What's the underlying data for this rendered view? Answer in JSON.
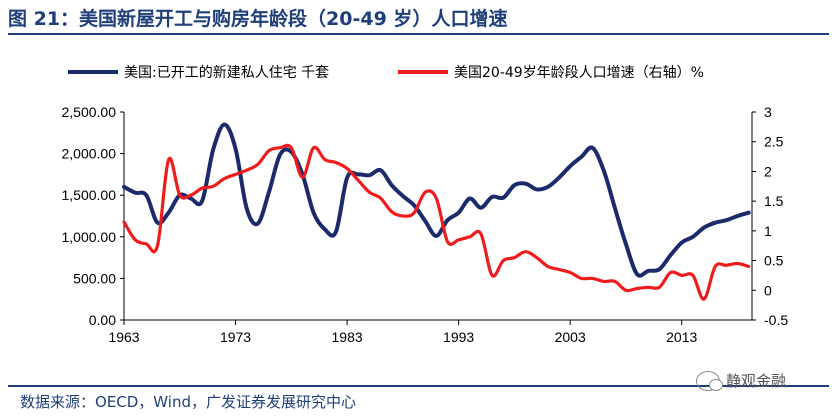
{
  "figure": {
    "title": "图 21：美国新屋开工与购房年龄段（20-49 岁）人口增速",
    "source": "数据来源：OECD，Wind，广发证券发展研究中心",
    "watermark": "静观金融"
  },
  "chart_data": {
    "type": "line",
    "x_ticks": [
      "1963",
      "1973",
      "1983",
      "1993",
      "2003",
      "2013"
    ],
    "y_left": {
      "ticks": [
        "0.00",
        "500.00",
        "1,000.00",
        "1,500.00",
        "2,000.00",
        "2,500.00"
      ],
      "range": [
        0,
        2500
      ]
    },
    "y_right": {
      "ticks": [
        "-0.5",
        "0",
        "0.5",
        "1",
        "1.5",
        "2",
        "2.5",
        "3"
      ],
      "range": [
        -0.5,
        3
      ]
    },
    "legend_placement": "top",
    "series": [
      {
        "name": "美国:已开工的新建私人住宅 千套",
        "axis": "left",
        "color": "#1b2a6b",
        "x": [
          1963,
          1964,
          1965,
          1966,
          1967,
          1968,
          1969,
          1970,
          1971,
          1972,
          1973,
          1974,
          1975,
          1976,
          1977,
          1978,
          1979,
          1980,
          1981,
          1982,
          1983,
          1984,
          1985,
          1986,
          1987,
          1988,
          1989,
          1990,
          1991,
          1992,
          1993,
          1994,
          1995,
          1996,
          1997,
          1998,
          1999,
          2000,
          2001,
          2002,
          2003,
          2004,
          2005,
          2006,
          2007,
          2008,
          2009,
          2010,
          2011,
          2012,
          2013,
          2014,
          2015,
          2016,
          2017,
          2018,
          2019
        ],
        "y": [
          1600,
          1530,
          1500,
          1170,
          1290,
          1500,
          1460,
          1430,
          2050,
          2350,
          2060,
          1340,
          1160,
          1540,
          1990,
          2020,
          1750,
          1290,
          1090,
          1060,
          1710,
          1750,
          1740,
          1800,
          1620,
          1490,
          1380,
          1190,
          1010,
          1200,
          1290,
          1460,
          1350,
          1480,
          1470,
          1620,
          1640,
          1570,
          1600,
          1710,
          1850,
          1960,
          2070,
          1800,
          1350,
          910,
          550,
          590,
          610,
          780,
          930,
          1000,
          1110,
          1170,
          1200,
          1250,
          1290
        ]
      },
      {
        "name": "美国20-49岁年龄段人口增速（右轴）%",
        "axis": "right",
        "color": "#ee1c1c",
        "x": [
          1963,
          1964,
          1965,
          1966,
          1967,
          1968,
          1969,
          1970,
          1971,
          1972,
          1973,
          1974,
          1975,
          1976,
          1977,
          1978,
          1979,
          1980,
          1981,
          1982,
          1983,
          1984,
          1985,
          1986,
          1987,
          1988,
          1989,
          1990,
          1991,
          1992,
          1993,
          1994,
          1995,
          1996,
          1997,
          1998,
          1999,
          2000,
          2001,
          2002,
          2003,
          2004,
          2005,
          2006,
          2007,
          2008,
          2009,
          2010,
          2011,
          2012,
          2013,
          2014,
          2015,
          2016,
          2017,
          2018,
          2019
        ],
        "y": [
          1.15,
          0.85,
          0.78,
          0.75,
          2.2,
          1.6,
          1.6,
          1.72,
          1.75,
          1.88,
          1.95,
          2.02,
          2.12,
          2.35,
          2.4,
          2.4,
          1.9,
          2.4,
          2.2,
          2.15,
          2.05,
          1.85,
          1.65,
          1.55,
          1.32,
          1.25,
          1.3,
          1.65,
          1.55,
          0.82,
          0.85,
          0.9,
          0.95,
          0.25,
          0.5,
          0.55,
          0.65,
          0.55,
          0.4,
          0.35,
          0.3,
          0.2,
          0.2,
          0.15,
          0.15,
          0.0,
          0.03,
          0.05,
          0.05,
          0.3,
          0.25,
          0.25,
          -0.15,
          0.4,
          0.42,
          0.45,
          0.4
        ]
      }
    ]
  }
}
